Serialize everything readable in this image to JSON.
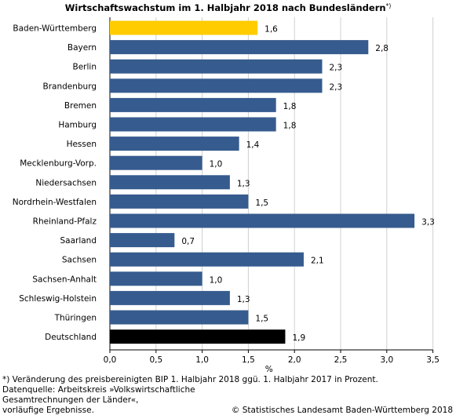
{
  "title": "Wirtschaftswachstum im 1. Halbjahr 2018 nach Bundesländern",
  "title_sup": "*)",
  "footnote_lines": [
    "*) Veränderung des preisbereinigten BIP 1. Halbjahr 2018 ggü. 1. Halbjahr  2017 in Prozent.",
    "Datenquelle: Arbeitskreis »Volkswirtschaftliche",
    "Gesamtrechnungen der Länder«,",
    "vorläufige Ergebnisse."
  ],
  "copyright": "© Statistisches Landesamt Baden-Württemberg 2018",
  "colors": {
    "highlight": "#ffcc00",
    "default": "#365b8e",
    "total": "#000000",
    "grid": "#d0d0d0"
  },
  "chart_data": {
    "type": "bar",
    "orientation": "horizontal",
    "xlabel": "%",
    "xlim": [
      0,
      3.5
    ],
    "xticks": [
      "0,0",
      "0,5",
      "1,0",
      "1,5",
      "2,0",
      "2,5",
      "3,0",
      "3,5"
    ],
    "grid": true,
    "categories": [
      "Baden-Württemberg",
      "Bayern",
      "Berlin",
      "Brandenburg",
      "Bremen",
      "Hamburg",
      "Hessen",
      "Mecklenburg-Vorp.",
      "Niedersachsen",
      "Nordrhein-Westfalen",
      "Rheinland-Pfalz",
      "Saarland",
      "Sachsen",
      "Sachsen-Anhalt",
      "Schleswig-Holstein",
      "Thüringen",
      "Deutschland"
    ],
    "values": [
      1.6,
      2.8,
      2.3,
      2.3,
      1.8,
      1.8,
      1.4,
      1.0,
      1.3,
      1.5,
      3.3,
      0.7,
      2.1,
      1.0,
      1.3,
      1.5,
      1.9
    ],
    "value_labels": [
      "1,6",
      "2,8",
      "2,3",
      "2,3",
      "1,8",
      "1,8",
      "1,4",
      "1,0",
      "1,3",
      "1,5",
      "3,3",
      "0,7",
      "2,1",
      "1,0",
      "1,3",
      "1,5",
      "1,9"
    ],
    "bar_colors": [
      "#ffcc00",
      "#365b8e",
      "#365b8e",
      "#365b8e",
      "#365b8e",
      "#365b8e",
      "#365b8e",
      "#365b8e",
      "#365b8e",
      "#365b8e",
      "#365b8e",
      "#365b8e",
      "#365b8e",
      "#365b8e",
      "#365b8e",
      "#365b8e",
      "#000000"
    ]
  }
}
